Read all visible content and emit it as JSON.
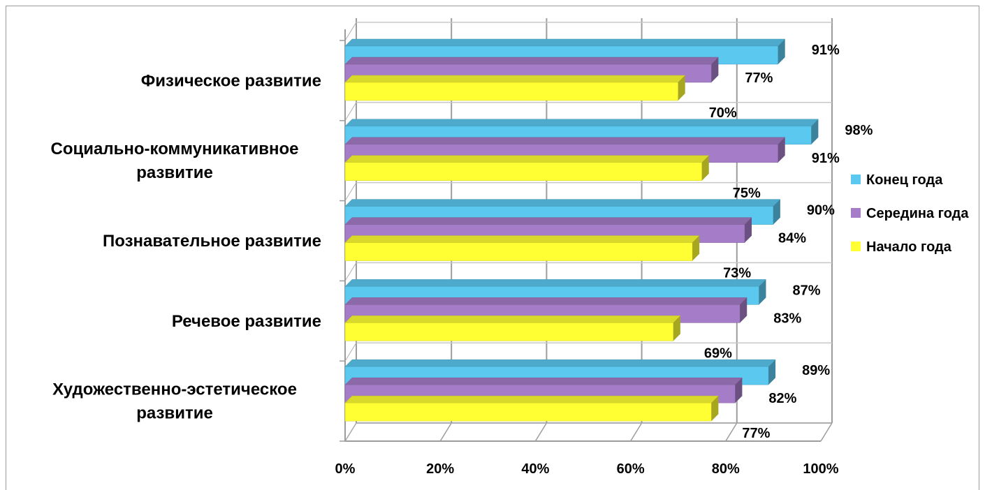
{
  "chart_data": {
    "type": "bar",
    "orientation": "horizontal",
    "categories": [
      "Физическое развитие",
      "Социально-коммуникативное развитие",
      "Познавательное развитие",
      "Речевое развитие",
      "Художественно-эстетическое развитие"
    ],
    "category_lines": [
      [
        "Физическое развитие"
      ],
      [
        "Социально-коммуникативное",
        "развитие"
      ],
      [
        "Познавательное развитие"
      ],
      [
        "Речевое развитие"
      ],
      [
        "Художественно-эстетическое",
        "развитие"
      ]
    ],
    "series": [
      {
        "name": "Конец года",
        "color": "#5bc8f0",
        "values": [
          91,
          98,
          90,
          87,
          89
        ]
      },
      {
        "name": "Середина года",
        "color": "#a57cc7",
        "values": [
          77,
          91,
          84,
          83,
          82
        ]
      },
      {
        "name": "Начало года",
        "color": "#ffff33",
        "values": [
          70,
          75,
          73,
          69,
          77
        ]
      }
    ],
    "value_format": "%",
    "xlim": [
      0,
      100
    ],
    "x_ticks": [
      "0%",
      "20%",
      "40%",
      "60%",
      "80%",
      "100%"
    ],
    "grid": true,
    "legend_position": "right",
    "title": "",
    "xlabel": "",
    "ylabel": ""
  }
}
